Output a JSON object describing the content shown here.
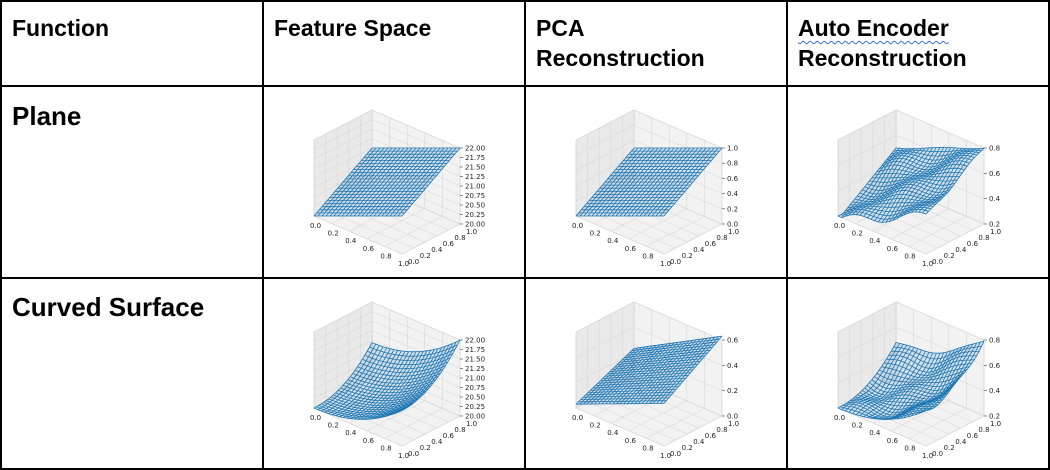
{
  "table": {
    "headers": {
      "function": "Function",
      "feature_space": "Feature Space",
      "pca_line1": "PCA",
      "pca_line2": "Reconstruction",
      "ae_line1": "Auto Encoder",
      "ae_line2": "Reconstruction"
    },
    "rows": [
      {
        "label": "Plane"
      },
      {
        "label": "Curved Surface"
      }
    ]
  },
  "colors": {
    "mesh": "#1f77b4",
    "pane": "#f2f2f2",
    "grid": "#d4d4d4",
    "border": "#000000"
  },
  "plots": {
    "plane_feature": {
      "x_ticks": [
        "0.0",
        "0.2",
        "0.4",
        "0.6",
        "0.8",
        "1.0"
      ],
      "y_ticks": [
        "0.0",
        "0.2",
        "0.4",
        "0.6",
        "0.8",
        "1.0"
      ],
      "z_ticks": [
        "20.00",
        "20.25",
        "20.50",
        "20.75",
        "21.00",
        "21.25",
        "21.50",
        "21.75",
        "22.00"
      ]
    },
    "plane_pca": {
      "x_ticks": [
        "0.0",
        "0.2",
        "0.4",
        "0.6",
        "0.8",
        "1.0"
      ],
      "y_ticks": [
        "0.0",
        "0.2",
        "0.4",
        "0.6",
        "0.8",
        "1.0"
      ],
      "z_ticks": [
        "0.0",
        "0.2",
        "0.4",
        "0.6",
        "0.8",
        "1.0"
      ]
    },
    "plane_ae": {
      "x_ticks": [
        "0.0",
        "0.2",
        "0.4",
        "0.6",
        "0.8",
        "1.0"
      ],
      "y_ticks": [
        "0.0",
        "0.2",
        "0.4",
        "0.6",
        "0.8",
        "1.0"
      ],
      "z_ticks": [
        "0.2",
        "0.4",
        "0.6",
        "0.8"
      ]
    },
    "curved_feature": {
      "x_ticks": [
        "0.0",
        "0.2",
        "0.4",
        "0.6",
        "0.8",
        "1.0"
      ],
      "y_ticks": [
        "0.0",
        "0.2",
        "0.4",
        "0.6",
        "0.8",
        "1.0"
      ],
      "z_ticks": [
        "20.00",
        "20.25",
        "20.50",
        "20.75",
        "21.00",
        "21.25",
        "21.50",
        "21.75",
        "22.00"
      ]
    },
    "curved_pca": {
      "x_ticks": [
        "0.0",
        "0.2",
        "0.4",
        "0.6",
        "0.8",
        "1.0"
      ],
      "y_ticks": [
        "0.0",
        "0.2",
        "0.4",
        "0.6",
        "0.8",
        "1.0"
      ],
      "z_ticks": [
        "0.0",
        "0.2",
        "0.4",
        "0.6"
      ]
    },
    "curved_ae": {
      "x_ticks": [
        "0.0",
        "0.2",
        "0.4",
        "0.6",
        "0.8",
        "1.0"
      ],
      "y_ticks": [
        "0.0",
        "0.2",
        "0.4",
        "0.6",
        "0.8",
        "1.0"
      ],
      "z_ticks": [
        "0.2",
        "0.4",
        "0.6",
        "0.8"
      ]
    }
  }
}
